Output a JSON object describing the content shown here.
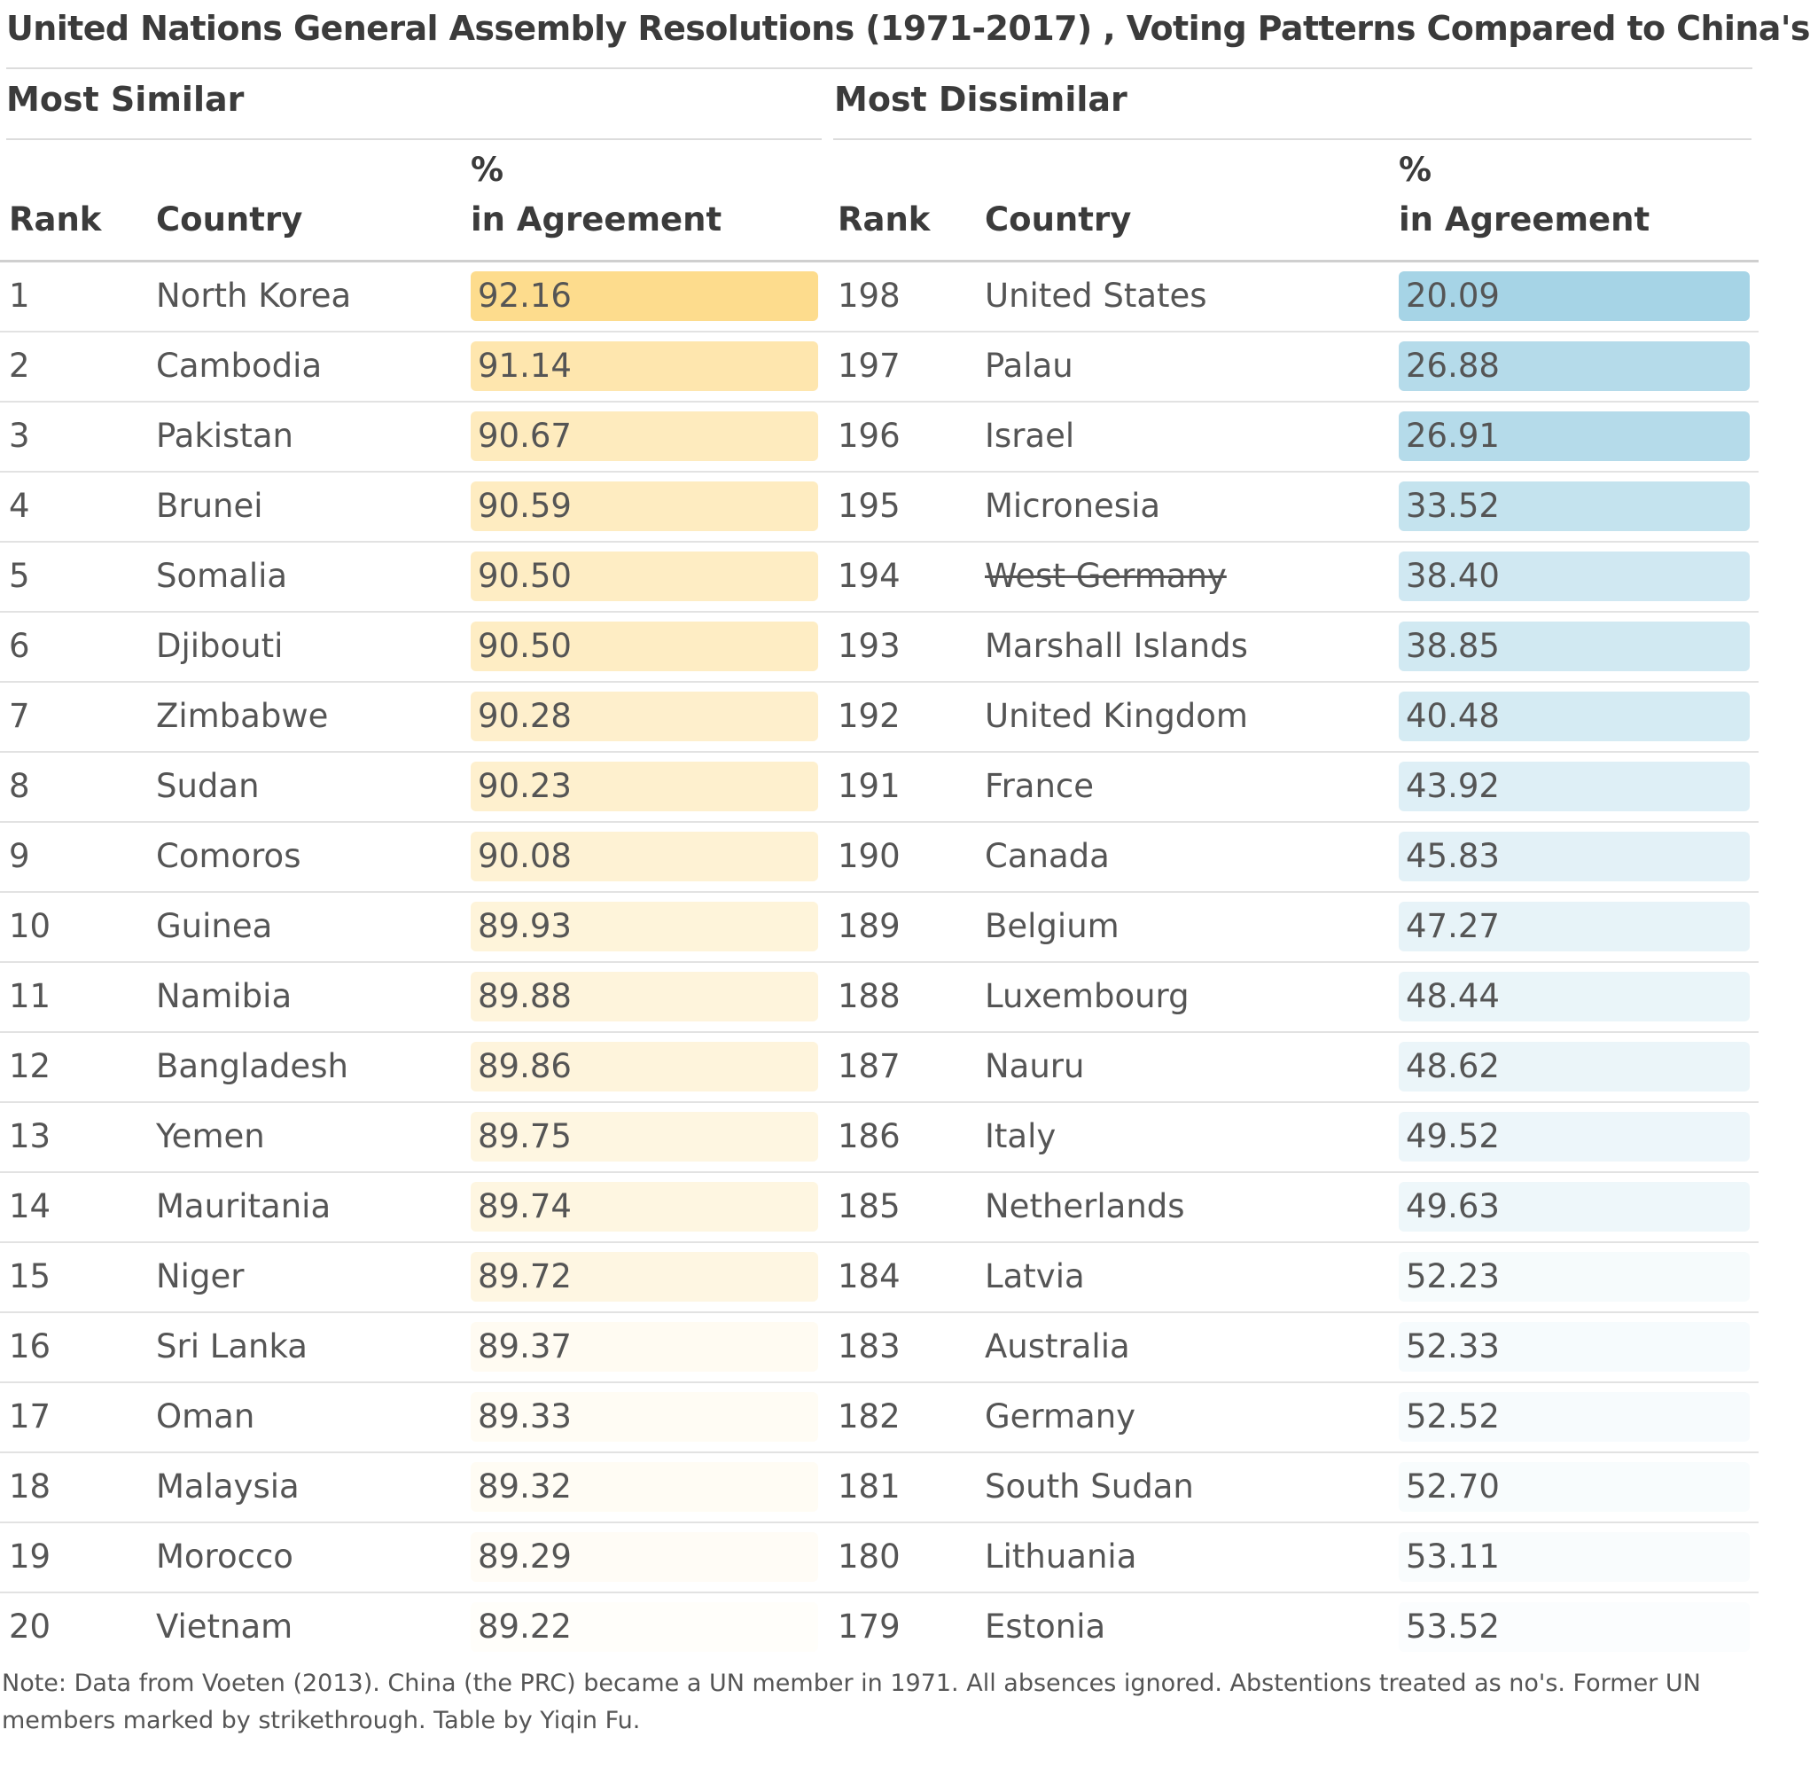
{
  "title": "United Nations General Assembly Resolutions (1971-2017) , Voting Patterns Compared to China's",
  "sections": {
    "similar": "Most Similar",
    "dissimilar": "Most Dissimilar"
  },
  "headers": {
    "rank": "Rank",
    "country": "Country",
    "pct_line1": "%",
    "pct_line2": "in Agreement"
  },
  "colors": {
    "similar_bar": "#fddc8d",
    "dissimilar_bar": "#a6d4e6"
  },
  "note": "Note: Data from Voeten (2013). China (the PRC) became a UN member in 1971. All absences ignored. Abstentions treated as no's. Former UN members marked by strikethrough. Table by Yiqin Fu.",
  "chart_data": {
    "type": "table",
    "title": "United Nations General Assembly Resolutions (1971-2017) , Voting Patterns Compared to China's",
    "columns": [
      "Rank",
      "Country",
      "% in Agreement"
    ],
    "tables": [
      {
        "name": "Most Similar",
        "rows": [
          {
            "rank": "1",
            "country": "North Korea",
            "value": "92.16"
          },
          {
            "rank": "2",
            "country": "Cambodia",
            "value": "91.14"
          },
          {
            "rank": "3",
            "country": "Pakistan",
            "value": "90.67"
          },
          {
            "rank": "4",
            "country": "Brunei",
            "value": "90.59"
          },
          {
            "rank": "5",
            "country": "Somalia",
            "value": "90.50"
          },
          {
            "rank": "6",
            "country": "Djibouti",
            "value": "90.50"
          },
          {
            "rank": "7",
            "country": "Zimbabwe",
            "value": "90.28"
          },
          {
            "rank": "8",
            "country": "Sudan",
            "value": "90.23"
          },
          {
            "rank": "9",
            "country": "Comoros",
            "value": "90.08"
          },
          {
            "rank": "10",
            "country": "Guinea",
            "value": "89.93"
          },
          {
            "rank": "11",
            "country": "Namibia",
            "value": "89.88"
          },
          {
            "rank": "12",
            "country": "Bangladesh",
            "value": "89.86"
          },
          {
            "rank": "13",
            "country": "Yemen",
            "value": "89.75"
          },
          {
            "rank": "14",
            "country": "Mauritania",
            "value": "89.74"
          },
          {
            "rank": "15",
            "country": "Niger",
            "value": "89.72"
          },
          {
            "rank": "16",
            "country": "Sri Lanka",
            "value": "89.37"
          },
          {
            "rank": "17",
            "country": "Oman",
            "value": "89.33"
          },
          {
            "rank": "18",
            "country": "Malaysia",
            "value": "89.32"
          },
          {
            "rank": "19",
            "country": "Morocco",
            "value": "89.29"
          },
          {
            "rank": "20",
            "country": "Vietnam",
            "value": "89.22"
          }
        ]
      },
      {
        "name": "Most Dissimilar",
        "rows": [
          {
            "rank": "198",
            "country": "United States",
            "value": "20.09"
          },
          {
            "rank": "197",
            "country": "Palau",
            "value": "26.88"
          },
          {
            "rank": "196",
            "country": "Israel",
            "value": "26.91"
          },
          {
            "rank": "195",
            "country": "Micronesia",
            "value": "33.52"
          },
          {
            "rank": "194",
            "country": "West Germany",
            "value": "38.40",
            "former_member": true
          },
          {
            "rank": "193",
            "country": "Marshall Islands",
            "value": "38.85"
          },
          {
            "rank": "192",
            "country": "United Kingdom",
            "value": "40.48"
          },
          {
            "rank": "191",
            "country": "France",
            "value": "43.92"
          },
          {
            "rank": "190",
            "country": "Canada",
            "value": "45.83"
          },
          {
            "rank": "189",
            "country": "Belgium",
            "value": "47.27"
          },
          {
            "rank": "188",
            "country": "Luxembourg",
            "value": "48.44"
          },
          {
            "rank": "187",
            "country": "Nauru",
            "value": "48.62"
          },
          {
            "rank": "186",
            "country": "Italy",
            "value": "49.52"
          },
          {
            "rank": "185",
            "country": "Netherlands",
            "value": "49.63"
          },
          {
            "rank": "184",
            "country": "Latvia",
            "value": "52.23"
          },
          {
            "rank": "183",
            "country": "Australia",
            "value": "52.33"
          },
          {
            "rank": "182",
            "country": "Germany",
            "value": "52.52"
          },
          {
            "rank": "181",
            "country": "South Sudan",
            "value": "52.70"
          },
          {
            "rank": "180",
            "country": "Lithuania",
            "value": "53.11"
          },
          {
            "rank": "179",
            "country": "Estonia",
            "value": "53.52"
          }
        ]
      }
    ]
  }
}
